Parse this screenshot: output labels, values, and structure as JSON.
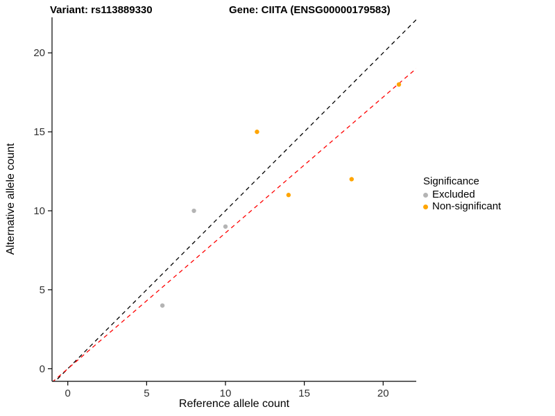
{
  "header": {
    "variant_label": "Variant: rs113889330",
    "gene_label": "Gene: CIITA (ENSG00000179583)"
  },
  "chart_data": {
    "type": "scatter",
    "title": "Variant: rs113889330 / Gene: CIITA (ENSG00000179583)",
    "xlabel": "Reference allele count",
    "ylabel": "Alternative allele count",
    "xlim": [
      -1,
      22.1
    ],
    "ylim": [
      -0.8,
      22.25
    ],
    "xticks": [
      0,
      5,
      10,
      15,
      20
    ],
    "yticks": [
      0,
      5,
      10,
      15,
      20
    ],
    "grid": false,
    "legend": {
      "title": "Significance",
      "position": "right",
      "entries": [
        {
          "label": "Excluded",
          "color": "#b4b4b4"
        },
        {
          "label": "Non-significant",
          "color": "#FFA500"
        }
      ]
    },
    "series": [
      {
        "name": "Excluded",
        "color": "#b4b4b4",
        "points": [
          [
            6,
            4
          ],
          [
            8,
            10
          ],
          [
            10,
            9
          ]
        ]
      },
      {
        "name": "Non-significant",
        "color": "#FFA500",
        "points": [
          [
            12,
            15
          ],
          [
            14,
            11
          ],
          [
            18,
            12
          ],
          [
            21,
            18
          ]
        ]
      }
    ],
    "reference_lines": [
      {
        "name": "identity",
        "slope": 1,
        "intercept": 0,
        "color": "#000000",
        "style": "dashed"
      },
      {
        "name": "fit",
        "slope": 0.86,
        "intercept": 0,
        "color": "#FF0000",
        "style": "dashed"
      }
    ]
  }
}
